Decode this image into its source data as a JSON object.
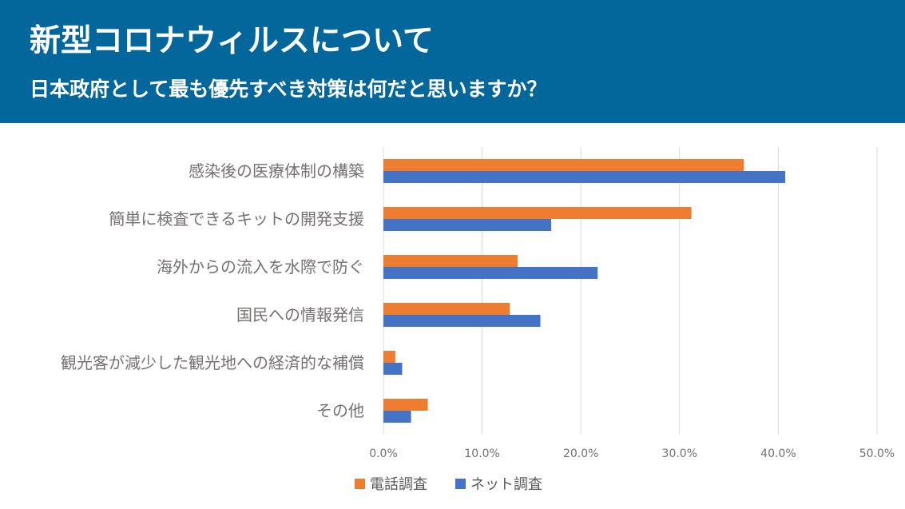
{
  "header": {
    "title": "新型コロナウィルスについて",
    "subtitle": "日本政府として最も優先すべき対策は何だと思いますか？"
  },
  "colors": {
    "header_bg": "#04679b",
    "phone": "#ed7d31",
    "net": "#4472c4",
    "grid": "#d9d9d9"
  },
  "chart_data": {
    "type": "bar",
    "orientation": "horizontal",
    "categories": [
      "感染後の医療体制の構築",
      "簡単に検査できるキットの開発支援",
      "海外からの流入を水際で防ぐ",
      "国民への情報発信",
      "観光客が減少した観光地への経済的な補償",
      "その他"
    ],
    "series": [
      {
        "name": "電話調査",
        "color": "#ed7d31",
        "values": [
          36.5,
          31.2,
          13.6,
          12.8,
          1.2,
          4.5
        ]
      },
      {
        "name": "ネット調査",
        "color": "#4472c4",
        "values": [
          40.7,
          17.0,
          21.7,
          15.9,
          1.9,
          2.8
        ]
      }
    ],
    "xlim": [
      0,
      50
    ],
    "xticks": [
      "0.0%",
      "10.0%",
      "20.0%",
      "30.0%",
      "40.0%",
      "50.0%"
    ],
    "grid": true,
    "legend_position": "bottom"
  }
}
